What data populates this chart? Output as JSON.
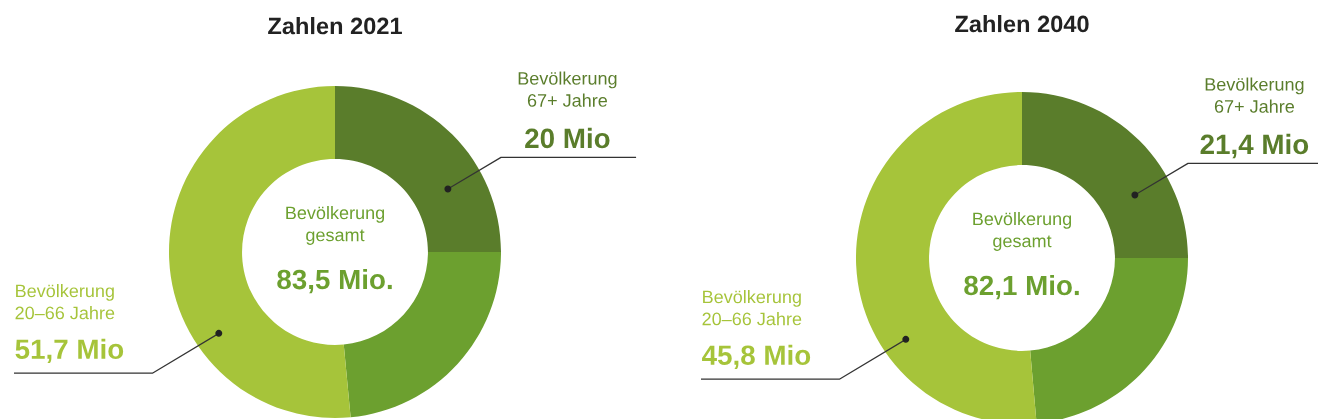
{
  "chart_data": [
    {
      "type": "donut",
      "title": "Zahlen 2021",
      "categories": [
        "Bevölkerung\n67+ Jahre\n20 Mio",
        null,
        "Bevölkerung\n20–66 Jahre\n51,7 Mio"
      ],
      "values": [
        25,
        23.5,
        51.5
      ],
      "colors": [
        "#5a7d2b",
        "#6ca02f",
        "#a6c43a"
      ],
      "annotations": [
        "Bevölkerung\ngesamt",
        "83,5 Mio."
      ]
    },
    {
      "type": "donut",
      "title": "Zahlen 2040",
      "categories": [
        "Bevölkerung\n67+ Jahre\n21,4 Mio",
        null,
        "Bevölkerung\n20–66 Jahre\n45,8 Mio"
      ],
      "values": [
        25,
        23.6,
        51.4
      ],
      "colors": [
        "#5a7d2b",
        "#6ca02f",
        "#a6c43a"
      ],
      "annotations": [
        "Bevölkerung\ngesamt",
        "82,1 Mio."
      ]
    }
  ]
}
